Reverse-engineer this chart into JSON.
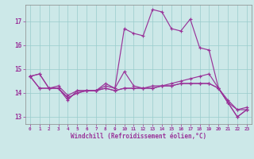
{
  "xlabel": "Windchill (Refroidissement éolien,°C)",
  "bg_color": "#cce8e8",
  "line_color": "#993399",
  "grid_color": "#99cccc",
  "xlim": [
    -0.5,
    23.5
  ],
  "ylim": [
    12.7,
    17.7
  ],
  "yticks": [
    13,
    14,
    15,
    16,
    17
  ],
  "xticks": [
    0,
    1,
    2,
    3,
    4,
    5,
    6,
    7,
    8,
    9,
    10,
    11,
    12,
    13,
    14,
    15,
    16,
    17,
    18,
    19,
    20,
    21,
    22,
    23
  ],
  "series": [
    [
      14.7,
      14.8,
      14.2,
      14.2,
      13.7,
      14.1,
      14.1,
      14.1,
      14.4,
      14.2,
      16.7,
      16.5,
      16.4,
      17.5,
      17.4,
      16.7,
      16.6,
      17.1,
      15.9,
      15.8,
      14.2,
      13.6,
      13.3,
      13.3
    ],
    [
      14.7,
      14.8,
      14.2,
      14.3,
      13.9,
      14.1,
      14.1,
      14.1,
      14.3,
      14.2,
      14.9,
      14.3,
      14.2,
      14.3,
      14.3,
      14.4,
      14.5,
      14.6,
      14.7,
      14.8,
      14.2,
      13.7,
      13.3,
      13.4
    ],
    [
      14.7,
      14.2,
      14.2,
      14.2,
      13.8,
      14.0,
      14.1,
      14.1,
      14.2,
      14.1,
      14.2,
      14.2,
      14.2,
      14.2,
      14.3,
      14.3,
      14.4,
      14.4,
      14.4,
      14.4,
      14.2,
      13.6,
      13.0,
      13.3
    ],
    [
      14.7,
      14.2,
      14.2,
      14.2,
      13.8,
      14.0,
      14.1,
      14.1,
      14.2,
      14.1,
      14.2,
      14.2,
      14.2,
      14.2,
      14.3,
      14.3,
      14.4,
      14.4,
      14.4,
      14.4,
      14.2,
      13.6,
      13.0,
      13.3
    ]
  ]
}
